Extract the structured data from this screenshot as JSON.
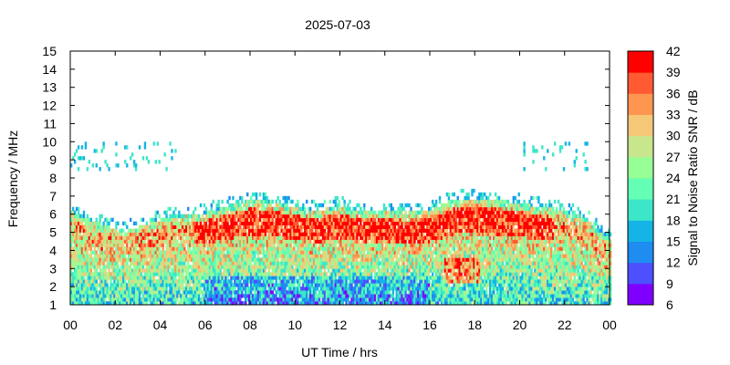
{
  "chart_data": {
    "type": "heatmap",
    "title": "2025-07-03",
    "xlabel": "UT Time / hrs",
    "ylabel": "Frequency / MHz",
    "colorbar_label": "Signal to Noise Ratio SNR / dB",
    "xlim": [
      0,
      24
    ],
    "ylim": [
      1,
      15
    ],
    "x_ticks": [
      "00",
      "02",
      "04",
      "06",
      "08",
      "10",
      "12",
      "14",
      "16",
      "18",
      "20",
      "22",
      "00"
    ],
    "y_ticks": [
      "1",
      "2",
      "3",
      "4",
      "5",
      "6",
      "7",
      "8",
      "9",
      "10",
      "11",
      "12",
      "13",
      "14",
      "15"
    ],
    "colorbar_ticks": [
      "6",
      "9",
      "12",
      "15",
      "18",
      "21",
      "24",
      "27",
      "30",
      "33",
      "36",
      "39",
      "42"
    ],
    "colorbar_range": [
      6,
      42
    ],
    "colorbar_colors": [
      "#8000ff",
      "#4c50ff",
      "#1e8cf0",
      "#14b4e6",
      "#3ce6c8",
      "#64ffb4",
      "#96ff96",
      "#c8e68c",
      "#f5c878",
      "#ff9650",
      "#ff5a32",
      "#ff0000"
    ],
    "data_shape": "time (x) by frequency (y) SNR grid; filled ~1-5 MHz all day with maximum usable frequency ~5.2 MHz at 02-04 UT and ~6.9 MHz around 17-19 UT; sparse returns at 8.5-10 MHz near 00-05 UT and 20-23 UT",
    "mof_profile": [
      [
        0,
        6.2
      ],
      [
        1,
        5.6
      ],
      [
        2,
        5.2
      ],
      [
        3,
        5.3
      ],
      [
        4,
        5.7
      ],
      [
        5,
        6.0
      ],
      [
        6,
        6.1
      ],
      [
        7,
        6.4
      ],
      [
        8,
        6.8
      ],
      [
        9,
        6.7
      ],
      [
        10,
        6.4
      ],
      [
        11,
        6.2
      ],
      [
        12,
        6.5
      ],
      [
        13,
        6.1
      ],
      [
        14,
        6.2
      ],
      [
        15,
        6.1
      ],
      [
        16,
        6.2
      ],
      [
        17,
        6.8
      ],
      [
        18,
        6.9
      ],
      [
        19,
        6.8
      ],
      [
        20,
        6.6
      ],
      [
        21,
        6.4
      ],
      [
        22,
        6.2
      ],
      [
        23,
        5.7
      ],
      [
        24,
        4.6
      ]
    ]
  }
}
